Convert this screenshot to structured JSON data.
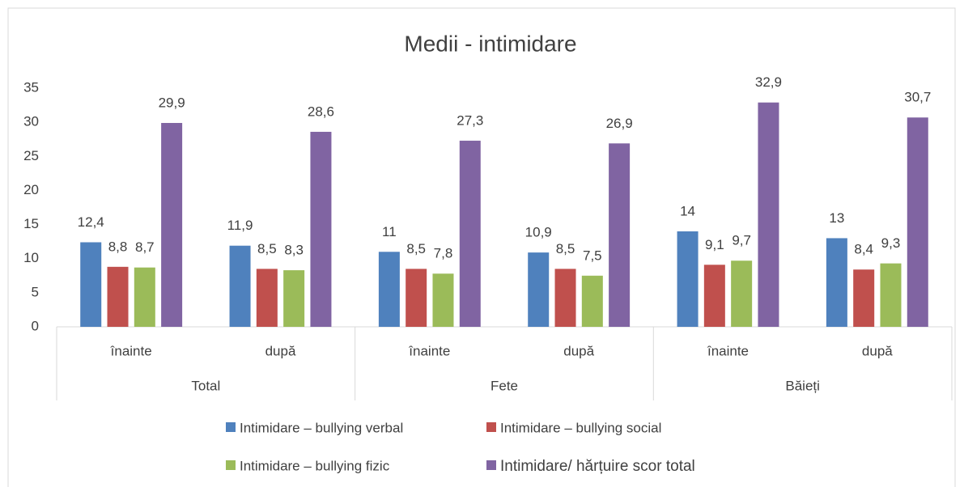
{
  "chart_data": {
    "type": "bar",
    "title": "Medii - intimidare",
    "categories": [
      "înainte",
      "după",
      "înainte",
      "după",
      "înainte",
      "după"
    ],
    "groups": [
      "Total",
      "Fete",
      "Băieți"
    ],
    "series": [
      {
        "name": "Intimidare – bullying verbal",
        "color": "#4f81bd",
        "values": [
          12.4,
          11.9,
          11,
          10.9,
          14,
          13
        ],
        "value_labels": [
          "12,4",
          "11,9",
          "11",
          "10,9",
          "14",
          "13"
        ]
      },
      {
        "name": "Intimidare – bullying social",
        "color": "#c0504d",
        "values": [
          8.8,
          8.5,
          8.5,
          8.5,
          9.1,
          8.4
        ],
        "value_labels": [
          "8,8",
          "8,5",
          "8,5",
          "8,5",
          "9,1",
          "8,4"
        ]
      },
      {
        "name": "Intimidare – bullying fizic",
        "color": "#9bbb59",
        "values": [
          8.7,
          8.3,
          7.8,
          7.5,
          9.7,
          9.3
        ],
        "value_labels": [
          "8,7",
          "8,3",
          "7,8",
          "7,5",
          "9,7",
          "9,3"
        ]
      },
      {
        "name": "Intimidare/ hărțuire scor total",
        "color": "#8064a2",
        "values": [
          29.9,
          28.6,
          27.3,
          26.9,
          32.9,
          30.7
        ],
        "value_labels": [
          "29,9",
          "28,6",
          "27,3",
          "26,9",
          "32,9",
          "30,7"
        ]
      }
    ],
    "ylim": [
      0,
      35
    ],
    "yticks": [
      0,
      5,
      10,
      15,
      20,
      25,
      30,
      35
    ],
    "grid": false,
    "legend": "bottom"
  }
}
